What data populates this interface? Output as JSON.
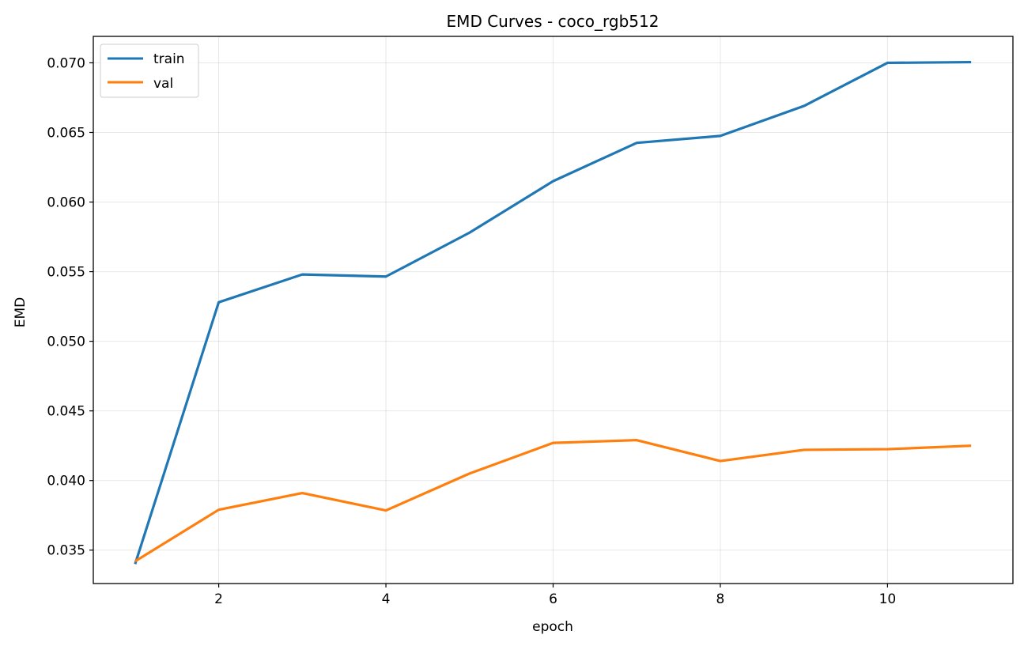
{
  "chart_data": {
    "type": "line",
    "title": "EMD Curves - coco_rgb512",
    "xlabel": "epoch",
    "ylabel": "EMD",
    "x": [
      1,
      2,
      3,
      4,
      5,
      6,
      7,
      8,
      9,
      10,
      11
    ],
    "series": [
      {
        "name": "train",
        "color": "#1f77b4",
        "values": [
          0.034,
          0.0528,
          0.0548,
          0.05465,
          0.0578,
          0.0615,
          0.06425,
          0.06475,
          0.0669,
          0.07,
          0.07005
        ]
      },
      {
        "name": "val",
        "color": "#ff7f0e",
        "values": [
          0.0342,
          0.0379,
          0.0391,
          0.03785,
          0.0405,
          0.0427,
          0.0429,
          0.0414,
          0.0422,
          0.04225,
          0.0425
        ]
      }
    ],
    "xlim": [
      0.5,
      11.5
    ],
    "ylim": [
      0.0326,
      0.0719
    ],
    "xticks": [
      2,
      4,
      6,
      8,
      10
    ],
    "xtick_labels": [
      "2",
      "4",
      "6",
      "8",
      "10"
    ],
    "yticks": [
      0.035,
      0.04,
      0.045,
      0.05,
      0.055,
      0.06,
      0.065,
      0.07
    ],
    "ytick_labels": [
      "0.035",
      "0.040",
      "0.045",
      "0.050",
      "0.055",
      "0.060",
      "0.065",
      "0.070"
    ],
    "grid": true,
    "legend_position": "top-left"
  }
}
